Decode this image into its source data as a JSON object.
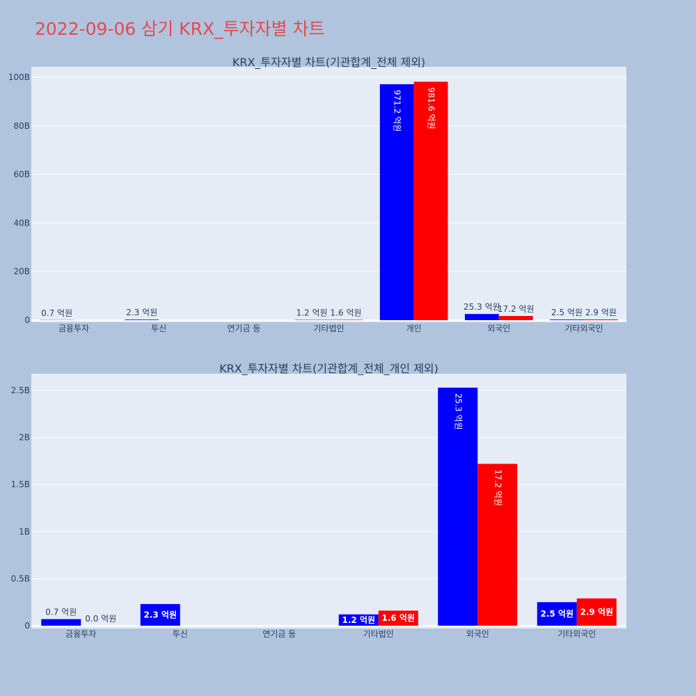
{
  "page": {
    "title": "2022-09-06 삼기 KRX_투자자별 차트"
  },
  "colors": {
    "background": "#b0c4de",
    "plot_background": "#e5ecf6",
    "grid": "#ffffff",
    "title": "#e8474f",
    "text": "#2a3f5f",
    "series_1": "#0000ff",
    "series_2": "#ff0000"
  },
  "chart_data": [
    {
      "type": "bar",
      "title": "KRX_투자자별 차트(기관합계_전체 제외)",
      "categories": [
        "금융투자",
        "투신",
        "연기금 등",
        "기타법인",
        "개인",
        "외국인",
        "기타외국인"
      ],
      "y_ticks": [
        "0",
        "20B",
        "40B",
        "60B",
        "80B",
        "100B"
      ],
      "ylim": [
        0,
        100
      ],
      "y_unit": "B",
      "series": [
        {
          "color": "#0000ff",
          "values": [
            0.07,
            0.23,
            null,
            0.12,
            97.12,
            2.53,
            0.25
          ],
          "labels": [
            "0.7 억원",
            "2.3 억원",
            "",
            "1.2 억원",
            "971.2 억원",
            "25.3 억원",
            "2.5 억원"
          ]
        },
        {
          "color": "#ff0000",
          "values": [
            null,
            null,
            null,
            0.16,
            98.16,
            1.72,
            0.29
          ],
          "labels": [
            "",
            "",
            "",
            "1.6 억원",
            "981.6 억원",
            "17.2 억원",
            "2.9 억원"
          ]
        }
      ]
    },
    {
      "type": "bar",
      "title": "KRX_투자자별 차트(기관합계_전체_개인 제외)",
      "categories": [
        "금융투자",
        "투신",
        "연기금 등",
        "기타법인",
        "외국인",
        "기타외국인"
      ],
      "y_ticks": [
        "0",
        "0.5B",
        "1B",
        "1.5B",
        "2B",
        "2.5B"
      ],
      "ylim": [
        0,
        2.5
      ],
      "y_unit": "B",
      "series": [
        {
          "color": "#0000ff",
          "values": [
            0.07,
            0.23,
            null,
            0.12,
            2.53,
            0.25
          ],
          "labels": [
            "0.7 억원",
            "2.3 억원",
            "",
            "1.2 억원",
            "25.3 억원",
            "2.5 억원"
          ]
        },
        {
          "color": "#ff0000",
          "values": [
            0.0,
            null,
            null,
            0.16,
            1.72,
            0.29
          ],
          "labels": [
            "0.0 억원",
            "",
            "",
            "1.6 억원",
            "17.2 억원",
            "2.9 억원"
          ]
        }
      ]
    }
  ]
}
